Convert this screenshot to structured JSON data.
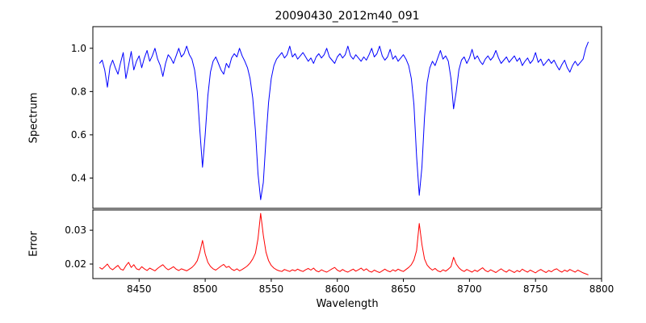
{
  "figure": {
    "background": "#ffffff"
  },
  "chart_data": {
    "type": "line",
    "title": "20090430_2012m40_091",
    "xlabel": "Wavelength",
    "xlim": [
      8415,
      8800
    ],
    "x_start": 8420,
    "x_step": 2,
    "x_ticks": [
      8450,
      8500,
      8550,
      8600,
      8650,
      8700,
      8750,
      8800
    ],
    "x_tick_labels": [
      "8450",
      "8500",
      "8550",
      "8600",
      "8650",
      "8700",
      "8750",
      "8800"
    ],
    "grid": false,
    "legend": "none",
    "panels": [
      {
        "name": "spectrum",
        "ylabel": "Spectrum",
        "color": "#0000ff",
        "ylim": [
          0.26,
          1.1
        ],
        "y_ticks": [
          0.4,
          0.6,
          0.8,
          1.0
        ],
        "y_tick_labels": [
          "0.4",
          "0.6",
          "0.8",
          "1.0"
        ],
        "features": "absorption lines near 8498, 8542, 8662 (Ca II triplet) and 8688",
        "values": [
          0.93,
          0.945,
          0.9,
          0.82,
          0.915,
          0.945,
          0.91,
          0.88,
          0.935,
          0.98,
          0.86,
          0.92,
          0.985,
          0.9,
          0.94,
          0.965,
          0.91,
          0.955,
          0.99,
          0.94,
          0.965,
          1.0,
          0.95,
          0.92,
          0.87,
          0.93,
          0.97,
          0.955,
          0.93,
          0.965,
          1.0,
          0.96,
          0.975,
          1.01,
          0.97,
          0.95,
          0.9,
          0.8,
          0.62,
          0.45,
          0.6,
          0.78,
          0.89,
          0.94,
          0.96,
          0.93,
          0.9,
          0.88,
          0.93,
          0.91,
          0.955,
          0.975,
          0.96,
          1.0,
          0.965,
          0.94,
          0.91,
          0.86,
          0.77,
          0.62,
          0.42,
          0.3,
          0.38,
          0.58,
          0.75,
          0.86,
          0.92,
          0.95,
          0.965,
          0.98,
          0.955,
          0.97,
          1.01,
          0.96,
          0.975,
          0.95,
          0.965,
          0.98,
          0.96,
          0.94,
          0.955,
          0.93,
          0.96,
          0.975,
          0.955,
          0.97,
          1.0,
          0.96,
          0.945,
          0.93,
          0.96,
          0.975,
          0.955,
          0.97,
          1.01,
          0.965,
          0.95,
          0.97,
          0.955,
          0.94,
          0.96,
          0.945,
          0.97,
          1.0,
          0.96,
          0.975,
          1.01,
          0.965,
          0.945,
          0.96,
          0.995,
          0.95,
          0.965,
          0.94,
          0.955,
          0.97,
          0.95,
          0.92,
          0.86,
          0.74,
          0.5,
          0.32,
          0.45,
          0.68,
          0.84,
          0.91,
          0.94,
          0.92,
          0.955,
          0.99,
          0.95,
          0.965,
          0.94,
          0.86,
          0.72,
          0.8,
          0.9,
          0.945,
          0.96,
          0.93,
          0.955,
          0.995,
          0.95,
          0.965,
          0.94,
          0.925,
          0.95,
          0.965,
          0.945,
          0.96,
          0.99,
          0.955,
          0.93,
          0.945,
          0.96,
          0.935,
          0.95,
          0.965,
          0.94,
          0.955,
          0.92,
          0.94,
          0.955,
          0.93,
          0.945,
          0.98,
          0.935,
          0.95,
          0.92,
          0.935,
          0.95,
          0.93,
          0.945,
          0.92,
          0.9,
          0.925,
          0.945,
          0.91,
          0.89,
          0.92,
          0.94,
          0.92,
          0.935,
          0.95,
          1.0,
          1.03
        ]
      },
      {
        "name": "error",
        "ylabel": "Error",
        "color": "#ff0000",
        "ylim": [
          0.0157,
          0.036
        ],
        "y_ticks": [
          0.02,
          0.03
        ],
        "y_tick_labels": [
          "0.02",
          "0.03"
        ],
        "features": "error peaks near 8498, 8542, 8662, 8688 matching spectrum lines",
        "values": [
          0.019,
          0.0185,
          0.0192,
          0.02,
          0.0188,
          0.0183,
          0.019,
          0.0196,
          0.0185,
          0.0182,
          0.0195,
          0.0205,
          0.019,
          0.0198,
          0.0186,
          0.0183,
          0.0192,
          0.0186,
          0.0181,
          0.0188,
          0.0184,
          0.018,
          0.0187,
          0.0193,
          0.0198,
          0.0189,
          0.0183,
          0.0187,
          0.0192,
          0.0185,
          0.0181,
          0.0186,
          0.0183,
          0.018,
          0.0185,
          0.019,
          0.0198,
          0.021,
          0.0235,
          0.027,
          0.023,
          0.0205,
          0.0193,
          0.0186,
          0.0182,
          0.0188,
          0.0194,
          0.0199,
          0.019,
          0.0193,
          0.0185,
          0.0181,
          0.0186,
          0.018,
          0.0184,
          0.0189,
          0.0195,
          0.0203,
          0.0215,
          0.0232,
          0.0275,
          0.035,
          0.0285,
          0.0235,
          0.021,
          0.0196,
          0.0188,
          0.0183,
          0.018,
          0.0178,
          0.0184,
          0.0181,
          0.0178,
          0.0183,
          0.018,
          0.0185,
          0.0181,
          0.0178,
          0.0183,
          0.0187,
          0.0182,
          0.0188,
          0.018,
          0.0177,
          0.0183,
          0.0179,
          0.0176,
          0.0181,
          0.0186,
          0.019,
          0.0182,
          0.0178,
          0.0184,
          0.0179,
          0.0176,
          0.0181,
          0.0185,
          0.0179,
          0.0183,
          0.0188,
          0.0181,
          0.0186,
          0.0179,
          0.0176,
          0.0182,
          0.0178,
          0.0175,
          0.018,
          0.0185,
          0.018,
          0.0177,
          0.0183,
          0.0179,
          0.0185,
          0.0181,
          0.0178,
          0.0184,
          0.019,
          0.0198,
          0.0212,
          0.024,
          0.032,
          0.0258,
          0.0215,
          0.0197,
          0.0188,
          0.0182,
          0.0187,
          0.018,
          0.0177,
          0.0183,
          0.0179,
          0.0185,
          0.0192,
          0.022,
          0.02,
          0.0189,
          0.0182,
          0.0178,
          0.0184,
          0.018,
          0.0176,
          0.0182,
          0.0178,
          0.0184,
          0.0189,
          0.0181,
          0.0177,
          0.0183,
          0.0179,
          0.0175,
          0.0181,
          0.0186,
          0.018,
          0.0176,
          0.0183,
          0.0179,
          0.0175,
          0.0181,
          0.0177,
          0.0185,
          0.018,
          0.0176,
          0.0182,
          0.0178,
          0.0174,
          0.018,
          0.0184,
          0.0179,
          0.0175,
          0.0181,
          0.0177,
          0.0183,
          0.0186,
          0.018,
          0.0176,
          0.0182,
          0.0178,
          0.0184,
          0.018,
          0.0176,
          0.0182,
          0.0178,
          0.0174,
          0.0171,
          0.0168
        ]
      }
    ]
  }
}
